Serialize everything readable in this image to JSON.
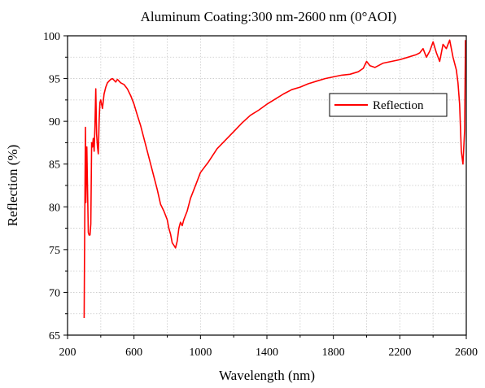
{
  "chart_data": {
    "type": "line",
    "title": "Aluminum Coating:300 nm-2600 nm (0°AOI)",
    "xlabel": "Wavelength (nm)",
    "ylabel": "Reflection (%)",
    "xlim": [
      200,
      2600
    ],
    "ylim": [
      65,
      100
    ],
    "xticks": [
      200,
      600,
      1000,
      1400,
      1800,
      2200,
      2600
    ],
    "yticks": [
      65,
      70,
      75,
      80,
      85,
      90,
      95,
      100
    ],
    "grid": true,
    "legend_position": "upper-right",
    "series": [
      {
        "name": "Reflection",
        "color": "#ff0000",
        "x": [
          300,
          302,
          305,
          308,
          310,
          313,
          316,
          320,
          325,
          330,
          335,
          340,
          345,
          350,
          355,
          360,
          365,
          370,
          375,
          380,
          385,
          390,
          395,
          400,
          410,
          420,
          430,
          440,
          450,
          460,
          470,
          480,
          490,
          500,
          520,
          540,
          560,
          580,
          600,
          620,
          640,
          660,
          680,
          700,
          720,
          740,
          760,
          780,
          800,
          810,
          820,
          830,
          840,
          850,
          860,
          870,
          880,
          890,
          900,
          920,
          940,
          960,
          980,
          1000,
          1050,
          1100,
          1150,
          1200,
          1250,
          1300,
          1350,
          1400,
          1450,
          1500,
          1550,
          1600,
          1650,
          1700,
          1750,
          1800,
          1850,
          1900,
          1950,
          1980,
          2000,
          2020,
          2050,
          2100,
          2150,
          2200,
          2250,
          2300,
          2320,
          2340,
          2360,
          2380,
          2400,
          2420,
          2440,
          2460,
          2480,
          2500,
          2520,
          2540,
          2550,
          2560,
          2570,
          2580,
          2590,
          2595
        ],
        "values": [
          67.0,
          73.5,
          81.5,
          89.3,
          80.5,
          84.0,
          87.0,
          82.5,
          77.0,
          76.7,
          76.7,
          78.0,
          87.5,
          87.0,
          88.0,
          86.5,
          89.5,
          93.8,
          88.5,
          87.0,
          86.2,
          90.0,
          92.2,
          92.5,
          91.5,
          93.2,
          94.0,
          94.5,
          94.7,
          94.9,
          95.0,
          94.8,
          94.6,
          94.9,
          94.5,
          94.3,
          93.8,
          93.0,
          92.0,
          90.7,
          89.5,
          88.0,
          86.5,
          85.0,
          83.5,
          82.0,
          80.3,
          79.5,
          78.5,
          77.5,
          76.8,
          75.8,
          75.5,
          75.2,
          76.0,
          77.5,
          78.2,
          77.8,
          78.5,
          79.5,
          81.0,
          82.0,
          83.0,
          84.0,
          85.3,
          86.8,
          87.8,
          88.8,
          89.8,
          90.7,
          91.3,
          92.0,
          92.6,
          93.2,
          93.7,
          94.0,
          94.4,
          94.7,
          95.0,
          95.2,
          95.4,
          95.5,
          95.8,
          96.2,
          97.0,
          96.5,
          96.3,
          96.8,
          97.0,
          97.2,
          97.5,
          97.8,
          98.0,
          98.5,
          97.5,
          98.2,
          99.3,
          98.0,
          97.0,
          99.0,
          98.5,
          99.5,
          97.5,
          96.0,
          94.5,
          92.0,
          86.5,
          85.0,
          89.0,
          99.5
        ]
      }
    ]
  }
}
